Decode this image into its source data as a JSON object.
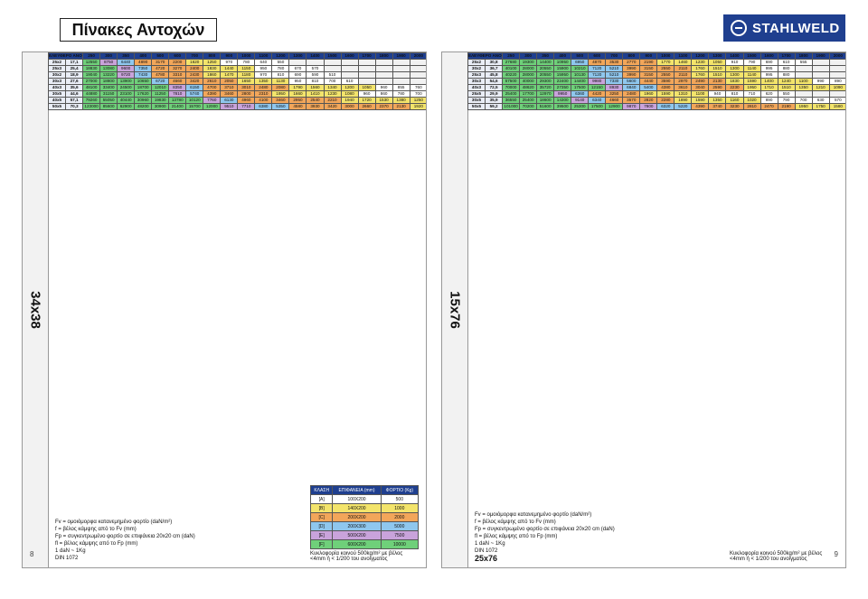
{
  "title": "Πίνακες Αντοχών",
  "logo": "STAHLWELD",
  "page_numbers": {
    "left": "8",
    "right": "9"
  },
  "left_page": {
    "section": "34x38",
    "header_label": "ΕΛΕΥΘΕΡΟ ΑΝΟΙΓΜΑ",
    "columns": [
      "250",
      "300",
      "350",
      "400",
      "500",
      "600",
      "700",
      "800",
      "900",
      "1000",
      "1100",
      "1200",
      "1300",
      "1400",
      "1500",
      "1600",
      "1700",
      "1800",
      "1900",
      "2000"
    ],
    "rows": [
      {
        "size": "25x2",
        "w": "17,1",
        "p": [
          "12550",
          "8750",
          "6440",
          "4890",
          "3170",
          "2200",
          "1620",
          "1250",
          "970",
          "780",
          "640",
          "550",
          "",
          "",
          "",
          "",
          "",
          "",
          "",
          ""
        ]
      },
      {
        "size": "25x3",
        "w": "25,4",
        "p": [
          "18830",
          "13080",
          "9600",
          "7350",
          "4720",
          "3270",
          "2400",
          "1830",
          "1440",
          "1150",
          "950",
          "780",
          "670",
          "570",
          "",
          "",
          "",
          "",
          "",
          ""
        ]
      },
      {
        "size": "30x2",
        "w": "18,9",
        "p": [
          "19040",
          "13220",
          "9720",
          "7430",
          "4780",
          "3310",
          "2430",
          "1860",
          "1470",
          "1180",
          "970",
          "810",
          "690",
          "590",
          "510",
          "",
          "",
          "",
          "",
          ""
        ]
      },
      {
        "size": "30x3",
        "w": "27,6",
        "p": [
          "27000",
          "18800",
          "13900",
          "10650",
          "6720",
          "4660",
          "3420",
          "2610",
          "2050",
          "1650",
          "1350",
          "1130",
          "950",
          "810",
          "700",
          "610",
          "",
          "",
          "",
          ""
        ]
      },
      {
        "size": "40x3",
        "w": "35,6",
        "p": [
          "48100",
          "33400",
          "24500",
          "18700",
          "12010",
          "8350",
          "6150",
          "4700",
          "3710",
          "3010",
          "2480",
          "2080",
          "1790",
          "1560",
          "1340",
          "1200",
          "1050",
          "960",
          "855",
          "760"
        ]
      },
      {
        "size": "30x5",
        "w": "44,6",
        "p": [
          "44880",
          "31150",
          "23100",
          "17620",
          "11250",
          "7810",
          "5740",
          "4390",
          "3460",
          "2800",
          "2310",
          "1950",
          "1660",
          "1410",
          "1230",
          "1080",
          "960",
          "860",
          "780",
          "700"
        ]
      },
      {
        "size": "40x5",
        "w": "57,1",
        "p": [
          "79260",
          "55050",
          "40440",
          "30960",
          "19830",
          "13780",
          "10120",
          "7760",
          "6130",
          "4960",
          "4100",
          "3460",
          "2950",
          "2540",
          "2210",
          "1940",
          "1720",
          "1530",
          "1380",
          "1250"
        ]
      },
      {
        "size": "50x5",
        "w": "70,3",
        "p": [
          "123000",
          "85600",
          "62900",
          "48200",
          "30900",
          "21400",
          "15700",
          "12000",
          "9510",
          "7710",
          "6380",
          "5350",
          "4580",
          "3930",
          "3420",
          "3000",
          "2660",
          "2370",
          "2130",
          "1920"
        ]
      }
    ],
    "legend": [
      "Fv = ομοιόμορφα κατανεμημένο φορτίο (daN/m²)",
      "f = βέλος κάμψης από το Fv (mm)",
      "Fp = συγκεντρωμένο φορτίο σε επιφάνεια 20x20 cm (daN)",
      "fl = βέλος κάμψης από το Fp (mm)"
    ],
    "unit_note": "1 daN ~ 1Kg",
    "din": "DIN 1072",
    "class_header": [
      "ΚΛΑΣΗ",
      "ΕΠΙΦΑΝΕΙΑ (mm)",
      "ΦΟΡΤΙΟ (Kg)"
    ],
    "classes": [
      [
        "[A]",
        "100X200",
        "500"
      ],
      [
        "[B]",
        "140X200",
        "1000"
      ],
      [
        "[C]",
        "200X200",
        "2000"
      ],
      [
        "[D]",
        "200X300",
        "5000"
      ],
      [
        "[E]",
        "500X200",
        "7500"
      ],
      [
        "[F]",
        "600X200",
        "10000"
      ]
    ],
    "note": "Κυκλοφορία κοινού 500kg/m² με βέλος <4mm ή < 1/200 του ανοίγματος"
  },
  "right_page": {
    "section": "15x76",
    "section_footer": "25x76",
    "header_label": "ΕΛΕΥΘΕΡΟ ΑΝΟΙΓΜΑ",
    "columns": [
      "250",
      "300",
      "350",
      "400",
      "500",
      "600",
      "700",
      "800",
      "900",
      "1000",
      "1100",
      "1200",
      "1300",
      "1400",
      "1500",
      "1600",
      "1700",
      "1800",
      "1900",
      "2000"
    ],
    "rows": [
      {
        "size": "25x2",
        "w": "30,8",
        "p": [
          "27680",
          "19300",
          "14400",
          "10950",
          "6950",
          "4870",
          "3530",
          "2770",
          "2190",
          "1770",
          "1460",
          "1230",
          "1050",
          "910",
          "790",
          "690",
          "610",
          "555",
          "",
          ""
        ]
      },
      {
        "size": "30x2",
        "w": "36,7",
        "p": [
          "40100",
          "28000",
          "20550",
          "15900",
          "10210",
          "7120",
          "5210",
          "3990",
          "3150",
          "2550",
          "2110",
          "1760",
          "1510",
          "1300",
          "1140",
          "995",
          "880",
          "",
          "",
          ""
        ]
      },
      {
        "size": "25x3",
        "w": "45,8",
        "p": [
          "40220",
          "28000",
          "20550",
          "15950",
          "10130",
          "7120",
          "5210",
          "3990",
          "3150",
          "2550",
          "2110",
          "1760",
          "1510",
          "1300",
          "1140",
          "995",
          "880",
          "",
          "",
          ""
        ]
      },
      {
        "size": "30x3",
        "w": "54,6",
        "p": [
          "57500",
          "40000",
          "29300",
          "22400",
          "14400",
          "9980",
          "7330",
          "5600",
          "4440",
          "3590",
          "2970",
          "2490",
          "2130",
          "1830",
          "1590",
          "1400",
          "1240",
          "1100",
          "990",
          "890"
        ]
      },
      {
        "size": "40x3",
        "w": "72,5",
        "p": [
          "70000",
          "48620",
          "35720",
          "27350",
          "17500",
          "12150",
          "8930",
          "6840",
          "5400",
          "4380",
          "3610",
          "3040",
          "2590",
          "2230",
          "1950",
          "1710",
          "1510",
          "1350",
          "1210",
          "1090"
        ]
      },
      {
        "size": "25x5",
        "w": "29,9",
        "p": [
          "25400",
          "17700",
          "12970",
          "9950",
          "6360",
          "4420",
          "3250",
          "2480",
          "1960",
          "1590",
          "1310",
          "1100",
          "940",
          "810",
          "710",
          "620",
          "550",
          "",
          "",
          ""
        ]
      },
      {
        "size": "30x5",
        "w": "35,9",
        "p": [
          "36550",
          "25400",
          "18600",
          "14300",
          "9140",
          "6340",
          "4660",
          "3570",
          "2820",
          "2280",
          "1890",
          "1590",
          "1350",
          "1160",
          "1020",
          "890",
          "790",
          "700",
          "630",
          "570"
        ]
      },
      {
        "size": "50x5",
        "w": "59,2",
        "p": [
          "101000",
          "70200",
          "51600",
          "39500",
          "25300",
          "17500",
          "12900",
          "9870",
          "7800",
          "6320",
          "5220",
          "4390",
          "3740",
          "3230",
          "2810",
          "2470",
          "2190",
          "1950",
          "1750",
          "1580"
        ]
      }
    ],
    "legend": [
      "Fv = ομοιόμορφα κατανεμημένο φορτίο (daN/m²)",
      "f = βέλος κάμψης από το Fv (mm)",
      "Fp = συγκεντρωμένο φορτίο σε επιφάνεια 20x20 cm (daN)",
      "fl = βέλος κάμψης από το Fp (mm)"
    ],
    "unit_note": "1 daN ~ 1Kg",
    "din": "DIN 1072",
    "note": "Κυκλοφορία κοινού 500kg/m² με βέλος <4mm ή < 1/200 του ανοίγματος"
  },
  "colors": {
    "header": "#1f3f8f",
    "classA": "#ffffff",
    "classB": "#f3e46b",
    "classC": "#f2a65a",
    "classD": "#8fc7ee",
    "classE": "#c9a3db",
    "classF": "#6fd07a"
  }
}
